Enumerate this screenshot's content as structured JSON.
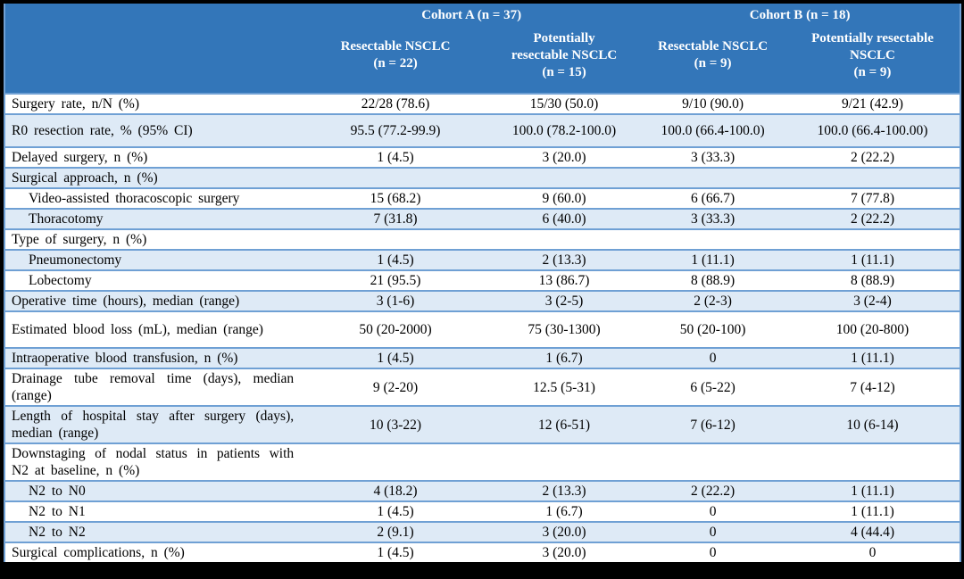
{
  "colors": {
    "header_bg": "#3376B9",
    "header_text": "#FFFFFF",
    "stripe": "#DEEAF6",
    "border": "#6FA0D4",
    "text": "#000000",
    "frame": "#000000"
  },
  "table": {
    "header": {
      "cohort_a": "Cohort A (n = 37)",
      "cohort_b": "Cohort B (n = 18)",
      "columns": [
        {
          "lines": [
            "Resectable NSCLC",
            "(n = 22)"
          ]
        },
        {
          "lines": [
            "Potentially",
            "resectable NSCLC",
            "(n = 15)"
          ]
        },
        {
          "lines": [
            "Resectable NSCLC",
            "(n = 9)"
          ]
        },
        {
          "lines": [
            "Potentially resectable",
            "NSCLC",
            "(n = 9)"
          ]
        }
      ]
    },
    "rows": [
      {
        "label": "Surgery rate, n/N (%)",
        "indent": false,
        "values": [
          "22/28 (78.6)",
          "15/30 (50.0)",
          "9/10 (90.0)",
          "9/21 (42.9)"
        ]
      },
      {
        "label": "R0 resection rate, % (95% CI)",
        "indent": false,
        "values": [
          "95.5 (77.2-99.9)",
          "100.0 (78.2-100.0)",
          "100.0 (66.4-100.0)",
          "100.0 (66.4-100.00)"
        ]
      },
      {
        "label": "Delayed surgery, n (%)",
        "indent": false,
        "values": [
          "1 (4.5)",
          "3 (20.0)",
          "3 (33.3)",
          "2 (22.2)"
        ]
      },
      {
        "label": "Surgical approach, n (%)",
        "indent": false,
        "values": [
          "",
          "",
          "",
          ""
        ]
      },
      {
        "label": "Video-assisted thoracoscopic surgery",
        "indent": true,
        "values": [
          "15 (68.2)",
          "9 (60.0)",
          "6 (66.7)",
          "7 (77.8)"
        ]
      },
      {
        "label": "Thoracotomy",
        "indent": true,
        "values": [
          "7 (31.8)",
          "6 (40.0)",
          "3 (33.3)",
          "2 (22.2)"
        ]
      },
      {
        "label": "Type of surgery, n (%)",
        "indent": false,
        "values": [
          "",
          "",
          "",
          ""
        ]
      },
      {
        "label": "Pneumonectomy",
        "indent": true,
        "values": [
          "1 (4.5)",
          "2 (13.3)",
          "1 (11.1)",
          "1 (11.1)"
        ]
      },
      {
        "label": "Lobectomy",
        "indent": true,
        "values": [
          "21 (95.5)",
          "13 (86.7)",
          "8 (88.9)",
          "8 (88.9)"
        ]
      },
      {
        "label": "Operative time (hours), median (range)",
        "indent": false,
        "values": [
          "3 (1-6)",
          "3 (2-5)",
          "2 (2-3)",
          "3 (2-4)"
        ]
      },
      {
        "label": "Estimated blood loss (mL), median (range)",
        "indent": false,
        "values": [
          "50 (20-2000)",
          "75 (30-1300)",
          "50 (20-100)",
          "100 (20-800)"
        ]
      },
      {
        "label": "Intraoperative blood transfusion, n (%)",
        "indent": false,
        "values": [
          "1 (4.5)",
          "1 (6.7)",
          "0",
          "1 (11.1)"
        ]
      },
      {
        "label": "Drainage tube removal time (days), median (range)",
        "indent": false,
        "values": [
          "9 (2-20)",
          "12.5 (5-31)",
          "6 (5-22)",
          "7 (4-12)"
        ]
      },
      {
        "label": "Length of hospital stay after surgery (days), median (range)",
        "indent": false,
        "values": [
          "10 (3-22)",
          "12 (6-51)",
          "7 (6-12)",
          "10 (6-14)"
        ]
      },
      {
        "label": "Downstaging of nodal status in patients with N2 at baseline, n (%)",
        "indent": false,
        "values": [
          "",
          "",
          "",
          ""
        ]
      },
      {
        "label": "N2 to N0",
        "indent": true,
        "values": [
          "4 (18.2)",
          "2 (13.3)",
          "2 (22.2)",
          "1 (11.1)"
        ]
      },
      {
        "label": "N2 to N1",
        "indent": true,
        "values": [
          "1 (4.5)",
          "1 (6.7)",
          "0",
          "1 (11.1)"
        ]
      },
      {
        "label": "N2 to N2",
        "indent": true,
        "values": [
          "2 (9.1)",
          "3 (20.0)",
          "0",
          "4 (44.4)"
        ]
      },
      {
        "label": "Surgical complications, n (%)",
        "indent": false,
        "values": [
          "1 (4.5)",
          "3 (20.0)",
          "0",
          "0"
        ]
      }
    ]
  }
}
